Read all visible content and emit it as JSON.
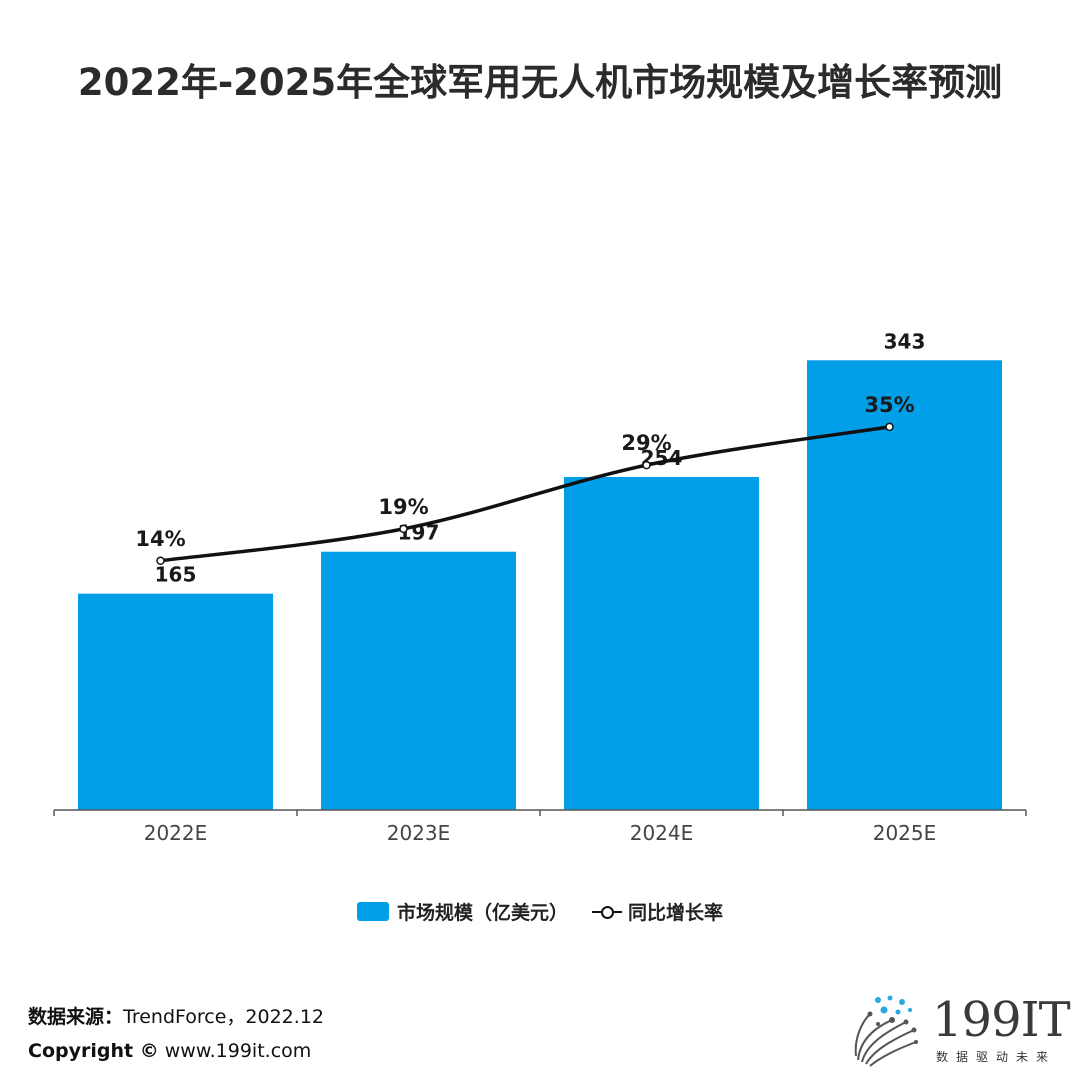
{
  "title": "2022年-2025年全球军用无人机市场规模及增长率预测",
  "chart_data": {
    "type": "bar",
    "categories": [
      "2022E",
      "2023E",
      "2024E",
      "2025E"
    ],
    "series": [
      {
        "name": "市场规模（亿美元）",
        "type": "bar",
        "values": [
          165,
          197,
          254,
          343
        ],
        "labels": [
          "165",
          "197",
          "254",
          "343"
        ]
      },
      {
        "name": "同比增长率",
        "type": "line",
        "values": [
          14,
          19,
          29,
          35
        ],
        "labels": [
          "14%",
          "19%",
          "29%",
          "35%"
        ]
      }
    ],
    "bar_ylim": [
      0,
      450
    ],
    "line_ylim": [
      0,
      80
    ]
  },
  "legend": {
    "bar_label": "市场规模（亿美元）",
    "line_label": "同比增长率"
  },
  "footer": {
    "source_label": "数据来源：",
    "source_value": "TrendForce，2022.12",
    "copyright_label": "Copyright ©",
    "copyright_value": "www.199it.com"
  },
  "logo": {
    "name": "199IT",
    "tagline": "数据驱动未来"
  },
  "colors": {
    "bar": "#009fe8",
    "line": "#111111"
  }
}
